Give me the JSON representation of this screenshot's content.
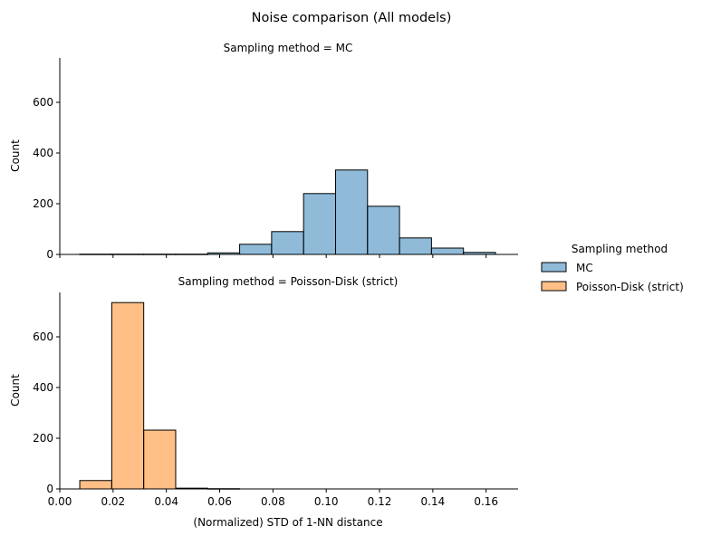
{
  "chart_data": {
    "type": "bar",
    "title": "Noise comparison (All models)",
    "xlabel": "(Normalized) STD of 1-NN distance",
    "ylabel": "Count",
    "xlim": [
      0.0,
      0.172
    ],
    "ylim": [
      0,
      775
    ],
    "x_ticks": [
      "0.00",
      "0.02",
      "0.04",
      "0.06",
      "0.08",
      "0.10",
      "0.12",
      "0.14",
      "0.16"
    ],
    "y_ticks": [
      "0",
      "200",
      "400",
      "600"
    ],
    "grid": false,
    "legend": {
      "title": "Sampling method",
      "position": "right",
      "entries": [
        {
          "name": "MC",
          "color": "#1f77b4"
        },
        {
          "name": "Poisson-Disk (strict)",
          "color": "#ff7f0e"
        }
      ]
    },
    "bin_edges": [
      0.0075,
      0.0195,
      0.0315,
      0.0435,
      0.0555,
      0.0675,
      0.0795,
      0.0915,
      0.1035,
      0.1155,
      0.1275,
      0.1395,
      0.1515,
      0.1635
    ],
    "panels": [
      {
        "title": "Sampling method = MC",
        "series": "MC",
        "color": "#1f77b4",
        "values": [
          1,
          1,
          1,
          1,
          6,
          40,
          90,
          240,
          333,
          190,
          65,
          25,
          8
        ]
      },
      {
        "title": "Sampling method = Poisson-Disk (strict)",
        "series": "Poisson-Disk (strict)",
        "color": "#ff7f0e",
        "values": [
          33,
          735,
          232,
          3,
          1,
          0,
          0,
          0,
          0,
          0,
          0,
          0,
          0
        ]
      }
    ]
  }
}
